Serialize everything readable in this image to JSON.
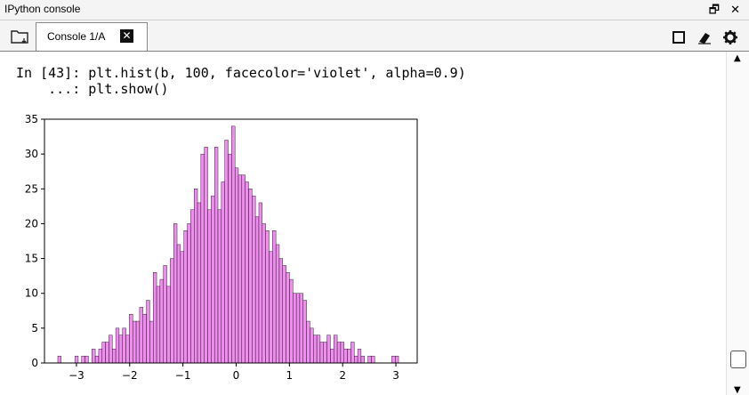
{
  "window": {
    "title": "IPython console",
    "undock_symbol": "🗗",
    "close_symbol": "✕"
  },
  "tabs": [
    {
      "label": "Console 1/A",
      "close_symbol": "✕"
    }
  ],
  "toolbar_icons": [
    "folder-browse-icon",
    "stop-square-icon",
    "eraser-icon",
    "gear-icon"
  ],
  "console": {
    "line1": "In [43]: plt.hist(b, 100, facecolor='violet', alpha=0.9)",
    "line2": "    ...: plt.show()"
  },
  "chart_data": {
    "type": "bar",
    "title": "",
    "xlabel": "",
    "ylabel": "",
    "xlim": [
      -3.6,
      3.4
    ],
    "ylim": [
      0,
      35
    ],
    "xticks": [
      -3,
      -2,
      -1,
      0,
      1,
      2,
      3
    ],
    "yticks": [
      0,
      5,
      10,
      15,
      20,
      25,
      30,
      35
    ],
    "xtick_labels": [
      "−3",
      "−2",
      "−1",
      "0",
      "1",
      "2",
      "3"
    ],
    "ytick_labels": [
      "0",
      "5",
      "10",
      "15",
      "20",
      "25",
      "30",
      "35"
    ],
    "bin_range": [
      -3.35,
      3.05
    ],
    "values": [
      1,
      0,
      0,
      0,
      0,
      1,
      0,
      1,
      1,
      0,
      2,
      1,
      2,
      3,
      3,
      4,
      2,
      5,
      4,
      5,
      4,
      7,
      6,
      6,
      8,
      7,
      9,
      6,
      13,
      11,
      12,
      14,
      11,
      15,
      20,
      17,
      16,
      19,
      20,
      22,
      25,
      23,
      30,
      31,
      22,
      24,
      31,
      22,
      26,
      32,
      30,
      34,
      28,
      27,
      27,
      26,
      25,
      24,
      21,
      23,
      20,
      19,
      16,
      19,
      17,
      15,
      14,
      13,
      12,
      10,
      10,
      10,
      9,
      6,
      5,
      4,
      4,
      3,
      3,
      4,
      2,
      4,
      3,
      3,
      2,
      2,
      3,
      1,
      2,
      1,
      0,
      1,
      1,
      0,
      0,
      0,
      0,
      0,
      1,
      1
    ],
    "color": "#ee82ee",
    "alpha": 0.9,
    "grid": false
  }
}
